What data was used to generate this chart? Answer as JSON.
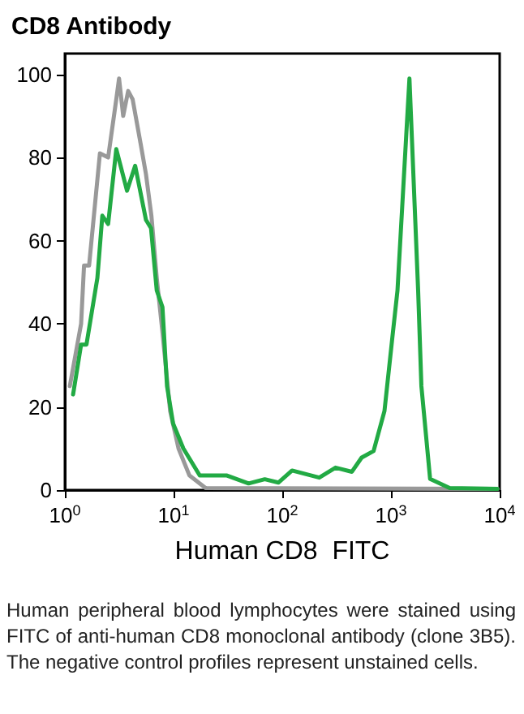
{
  "chart_data": {
    "type": "line",
    "title": "CD8 Antibody",
    "xlabel": "Human CD8  FITC",
    "log": "x",
    "grid": false,
    "marker": "none",
    "line_style": "solid",
    "xlim": [
      1,
      10000
    ],
    "ylim": [
      0,
      105
    ],
    "xticks": [
      {
        "value": 1,
        "label": "10$^{0}$"
      },
      {
        "value": 10,
        "label": "10$^{1}$"
      },
      {
        "value": 100,
        "label": "10$^{2}$"
      },
      {
        "value": 1000,
        "label": "10$^{3}$"
      },
      {
        "value": 10000,
        "label": "10$^{4}$"
      }
    ],
    "yticks": [
      0,
      20,
      40,
      60,
      80,
      100
    ],
    "series": [
      {
        "color": "#999999",
        "x": [
          1.11,
          1.41,
          1.5,
          1.67,
          2.1,
          2.5,
          2.97,
          3.15,
          3.44,
          3.82,
          4.2,
          5.0,
          5.57,
          6.25,
          7.0,
          7.9,
          9.3,
          11.1,
          14,
          19.7,
          9550
        ],
        "values": [
          25,
          40,
          54,
          54,
          81,
          80,
          94,
          99,
          90,
          96,
          94,
          83,
          76,
          66,
          51,
          38,
          19,
          10,
          3.5,
          0.5,
          0.3
        ]
      },
      {
        "color": "#22aa44",
        "x": [
          1.19,
          1.41,
          1.58,
          1.99,
          2.21,
          2.5,
          2.97,
          3.73,
          4.43,
          5.57,
          6.2,
          7.0,
          7.9,
          8.7,
          9.9,
          12.3,
          17.4,
          31,
          49,
          69,
          92,
          123,
          219,
          309,
          437,
          537,
          692,
          871,
          1023,
          1148,
          1479,
          1778,
          1905,
          2291,
          3467,
          9550
        ],
        "values": [
          23,
          35,
          35,
          51,
          66,
          64,
          82,
          72,
          78,
          65,
          63,
          48,
          44,
          25,
          16,
          10,
          3.5,
          3.5,
          1.6,
          2.6,
          1.8,
          4.7,
          3,
          5.4,
          4.4,
          7.8,
          9.4,
          19,
          36,
          48,
          99,
          48,
          25,
          2.7,
          0.5,
          0.3
        ]
      }
    ],
    "annotations": [
      "Human peripheral blood lymphocytes were stained using FITC of anti-human CD8 monoclonal antibody (clone 3B5). The negative control profiles represent unstained cells."
    ]
  }
}
